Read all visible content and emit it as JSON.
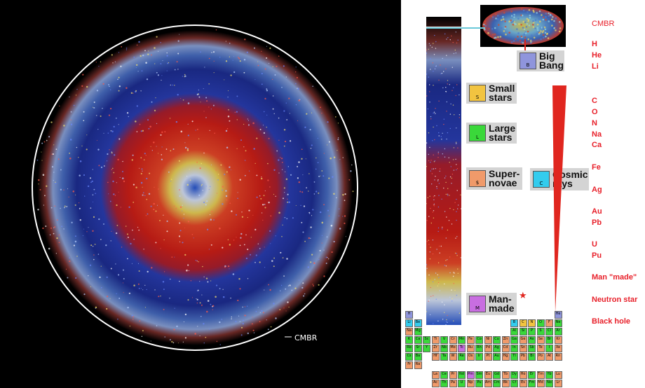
{
  "left_panel": {
    "label": "CMBR"
  },
  "legend": {
    "big_bang": {
      "text": "Big\nBang",
      "badge": "B",
      "color": "#8f95dc"
    },
    "small_stars": {
      "text": "Small\nstars",
      "badge": "S",
      "color": "#f2c440"
    },
    "large_stars": {
      "text": "Large\nstars",
      "badge": "L",
      "color": "#3ad83a"
    },
    "supernovae": {
      "text": "Super-\nnovae",
      "badge": "$",
      "color": "#f09a6a"
    },
    "cosmic_rays": {
      "text": "Cosmic\nrays",
      "badge": "C",
      "color": "#33ccee"
    },
    "man_made": {
      "text": "Man-\nmade",
      "badge": "M",
      "color": "#c86ee0"
    }
  },
  "right_labels": [
    "CMBR",
    "H",
    "He",
    "Li",
    "C",
    "O",
    "N",
    "Na",
    "Ca",
    "Fe",
    "Ag",
    "Au",
    "Pb",
    "U",
    "Pu",
    "Man \"made\"",
    "Neutron star",
    "Black hole"
  ],
  "periodic_table": {
    "rows": [
      [
        "H",
        "",
        "",
        "",
        "",
        "",
        "",
        "",
        "",
        "",
        "",
        "",
        "",
        "",
        "",
        "",
        "",
        "He"
      ],
      [
        "Li",
        "Be",
        "",
        "",
        "",
        "",
        "",
        "",
        "",
        "",
        "",
        "",
        "B",
        "C",
        "N",
        "O",
        "F",
        "Ne"
      ],
      [
        "Na",
        "Mg",
        "",
        "",
        "",
        "",
        "",
        "",
        "",
        "",
        "",
        "",
        "Al",
        "Si",
        "P",
        "S",
        "Cl",
        "Ar"
      ],
      [
        "K",
        "Ca",
        "Sc",
        "Ti",
        "V",
        "Cr",
        "Mn",
        "Fe",
        "Co",
        "Ni",
        "Cu",
        "Zn",
        "Ga",
        "Ge",
        "As",
        "Se",
        "Br",
        "Kr"
      ],
      [
        "Rb",
        "Sr",
        "Y",
        "Zr",
        "Nb",
        "Mo",
        "Tc",
        "Ru",
        "Rh",
        "Pd",
        "Ag",
        "Cd",
        "In",
        "Sn",
        "Sb",
        "Te",
        "I",
        "Xe"
      ],
      [
        "Cs",
        "Ba",
        "",
        "Hf",
        "Ta",
        "W",
        "Re",
        "Os",
        "Ir",
        "Pt",
        "Au",
        "Hg",
        "Tl",
        "Pb",
        "Bi",
        "Po",
        "At",
        "Rn"
      ],
      [
        "Fr",
        "Ra",
        "",
        "",
        "",
        "",
        "",
        "",
        "",
        "",
        "",
        "",
        "",
        "",
        "",
        "",
        "",
        ""
      ]
    ],
    "lanthanides": [
      "La",
      "Ce",
      "Pr",
      "Nd",
      "Pm",
      "Sm",
      "Eu",
      "Gd",
      "Tb",
      "Dy",
      "Ho",
      "Er",
      "Tm",
      "Yb",
      "Lu"
    ],
    "actinides": [
      "Ac",
      "Th",
      "Pa",
      "U",
      "Np",
      "Pu",
      "Am",
      "Cm",
      "Bk",
      "Cf",
      "Es",
      "Fm",
      "Md",
      "No",
      "Lr"
    ]
  },
  "colors": {
    "blue": "#3a4fd8",
    "red": "#e0261f",
    "yellow": "#f1d34c",
    "white": "#e8f0ff",
    "ptable_blue": "#8f95dc",
    "ptable_cyan": "#33ccee",
    "ptable_green": "#3ad83a",
    "ptable_orange": "#f09a6a",
    "ptable_purple": "#c86ee0",
    "ptable_yellow": "#f2c440"
  }
}
